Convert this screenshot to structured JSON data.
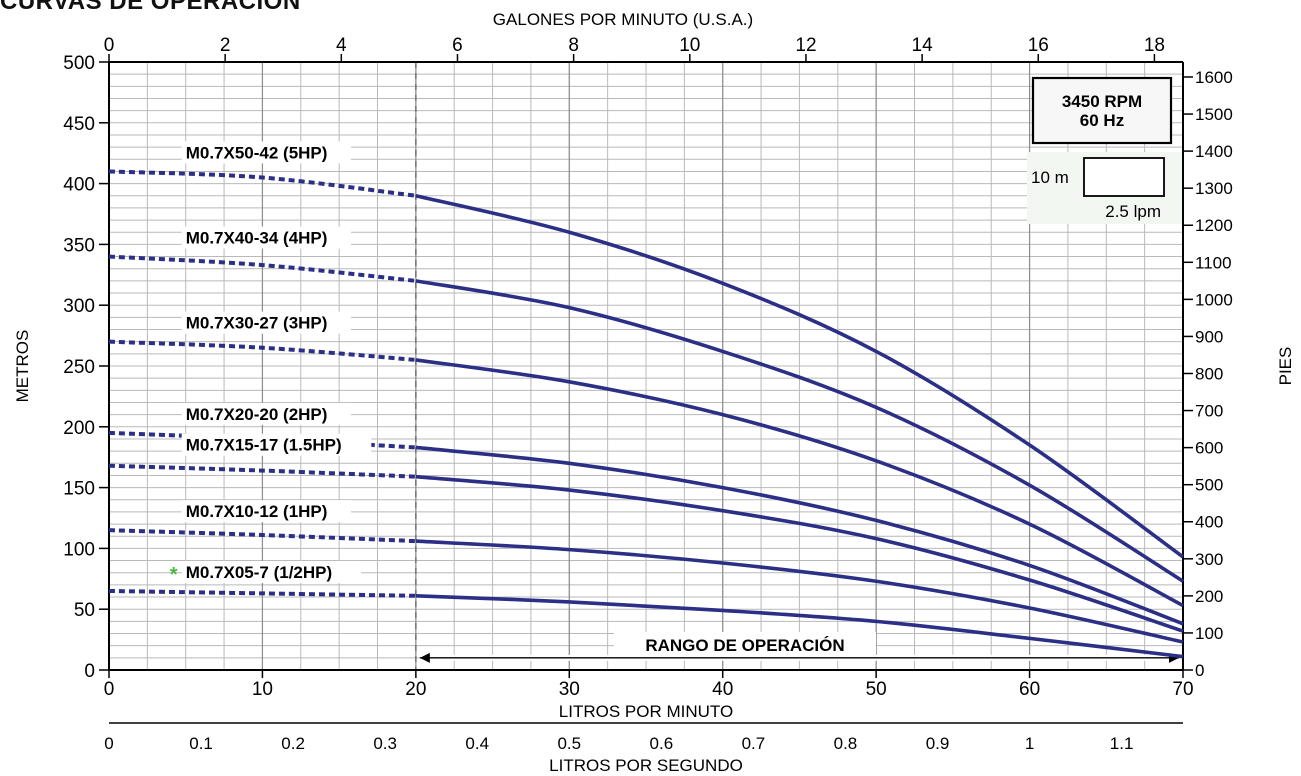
{
  "chart_data": {
    "type": "line",
    "title": "CURVAS DE OPERACIÓN",
    "x_label_top": "GALONES POR MINUTO (U.S.A.)",
    "x_label_bottom": "LITROS POR MINUTO",
    "x_label_lps": "LITROS POR SEGUNDO",
    "y_label_left": "METROS",
    "y_label_right": "PIES",
    "xlim": [
      0,
      70
    ],
    "ylim": [
      0,
      500
    ],
    "x_ticks": [
      "0",
      "10",
      "20",
      "30",
      "40",
      "50",
      "60",
      "70"
    ],
    "y_ticks": [
      "0",
      "50",
      "100",
      "150",
      "200",
      "250",
      "300",
      "350",
      "400",
      "450",
      "500"
    ],
    "gpm_ticks": [
      "0",
      "2",
      "4",
      "6",
      "8",
      "10",
      "12",
      "14",
      "16",
      "18"
    ],
    "ft_ticks": [
      "0",
      "100",
      "200",
      "300",
      "400",
      "500",
      "600",
      "700",
      "800",
      "900",
      "1000",
      "1100",
      "1200",
      "1300",
      "1400",
      "1500",
      "1600"
    ],
    "lps_ticks": [
      "0",
      "0.1",
      "0.2",
      "0.3",
      "0.4",
      "0.5",
      "0.6",
      "0.7",
      "0.8",
      "0.9",
      "1",
      "1.1"
    ],
    "speed_box": {
      "line1": "3450 RPM",
      "line2": "60 Hz"
    },
    "scale_legend": {
      "vertical": "10 m",
      "horizontal": "2.5 lpm"
    },
    "operating_range": {
      "label": "RANGO DE OPERACIÓN",
      "from": 20,
      "to": 70
    },
    "x_dashed_until": 20,
    "grid": true,
    "curve_color": "#2b2f86",
    "marker": {
      "glyph": "*",
      "color": "#4ab83f"
    },
    "series": [
      {
        "name": "M0.7X50-42 (5HP)",
        "x": [
          0,
          10,
          20,
          30,
          40,
          50,
          60,
          70
        ],
        "values": [
          410,
          405,
          390,
          360,
          318,
          262,
          185,
          93
        ]
      },
      {
        "name": "M0.7X40-34 (4HP)",
        "x": [
          0,
          10,
          20,
          30,
          40,
          50,
          60,
          70
        ],
        "values": [
          340,
          333,
          320,
          298,
          262,
          216,
          152,
          73
        ]
      },
      {
        "name": "M0.7X30-27 (3HP)",
        "x": [
          0,
          10,
          20,
          30,
          40,
          50,
          60,
          70
        ],
        "values": [
          270,
          265,
          255,
          237,
          210,
          172,
          120,
          53
        ]
      },
      {
        "name": "M0.7X20-20 (2HP)",
        "x": [
          0,
          10,
          20,
          30,
          40,
          50,
          60,
          70
        ],
        "values": [
          195,
          190,
          183,
          170,
          150,
          123,
          86,
          38
        ]
      },
      {
        "name": "M0.7X15-17 (1.5HP)",
        "x": [
          0,
          10,
          20,
          30,
          40,
          50,
          60,
          70
        ],
        "values": [
          168,
          164,
          159,
          148,
          131,
          108,
          74,
          32
        ]
      },
      {
        "name": "M0.7X10-12 (1HP)",
        "x": [
          0,
          10,
          20,
          30,
          40,
          50,
          60,
          70
        ],
        "values": [
          115,
          111,
          106,
          99,
          88,
          73,
          51,
          23
        ]
      },
      {
        "name": "M0.7X05-7 (1/2HP)",
        "x": [
          0,
          10,
          20,
          30,
          40,
          50,
          60,
          70
        ],
        "values": [
          65,
          63,
          61,
          56,
          49,
          40,
          26,
          11
        ]
      }
    ]
  }
}
